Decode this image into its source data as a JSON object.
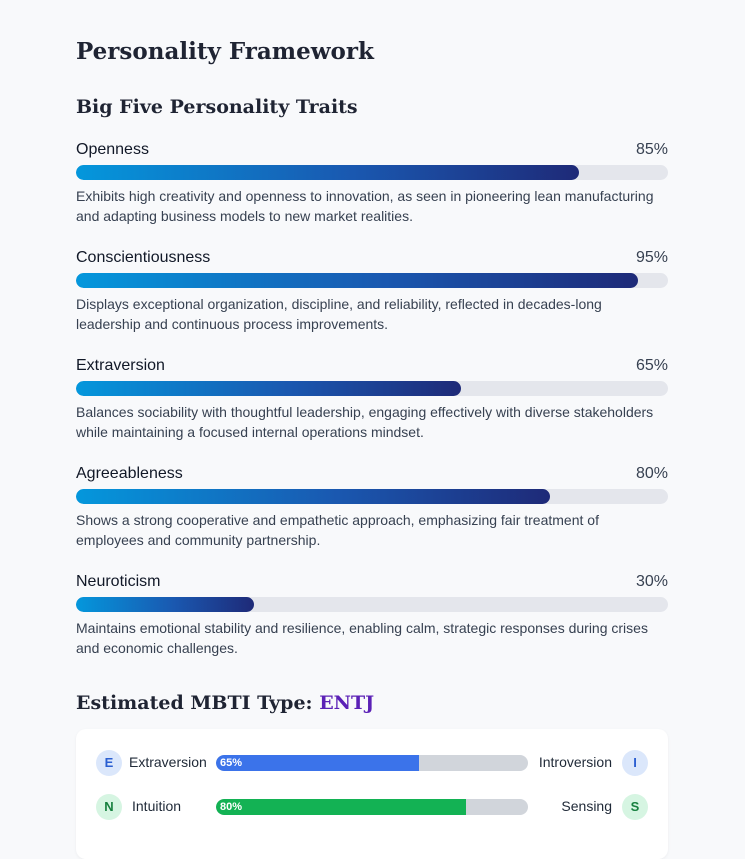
{
  "page": {
    "title": "Personality Framework",
    "big_five_heading": "Big Five Personality Traits"
  },
  "traits": [
    {
      "name": "Openness",
      "percent_label": "85%",
      "value": 85,
      "description": "Exhibits high creativity and openness to innovation, as seen in pioneering lean manufacturing and adapting business models to new market realities."
    },
    {
      "name": "Conscientiousness",
      "percent_label": "95%",
      "value": 95,
      "description": "Displays exceptional organization, discipline, and reliability, reflected in decades-long leadership and continuous process improvements."
    },
    {
      "name": "Extraversion",
      "percent_label": "65%",
      "value": 65,
      "description": "Balances sociability with thoughtful leadership, engaging effectively with diverse stakeholders while maintaining a focused internal operations mindset."
    },
    {
      "name": "Agreeableness",
      "percent_label": "80%",
      "value": 80,
      "description": "Shows a strong cooperative and empathetic approach, emphasizing fair treatment of employees and community partnership."
    },
    {
      "name": "Neuroticism",
      "percent_label": "30%",
      "value": 30,
      "description": "Maintains emotional stability and resilience, enabling calm, strategic responses during crises and economic challenges."
    }
  ],
  "mbti": {
    "heading_prefix": "Estimated MBTI Type: ",
    "type": "ENTJ",
    "dimensions": [
      {
        "left_letter": "E",
        "left_label": "Extraversion",
        "right_label": "Introversion",
        "right_letter": "I",
        "value": 65,
        "value_label": "65%",
        "color": "#3b73ea",
        "badge_bg": "#dbe7fb",
        "badge_fg": "#2b5fd1"
      },
      {
        "left_letter": "N",
        "left_label": "Intuition",
        "right_label": "Sensing",
        "right_letter": "S",
        "value": 80,
        "value_label": "80%",
        "color": "#13b254",
        "badge_bg": "#d6f5e2",
        "badge_fg": "#17803f"
      }
    ]
  }
}
